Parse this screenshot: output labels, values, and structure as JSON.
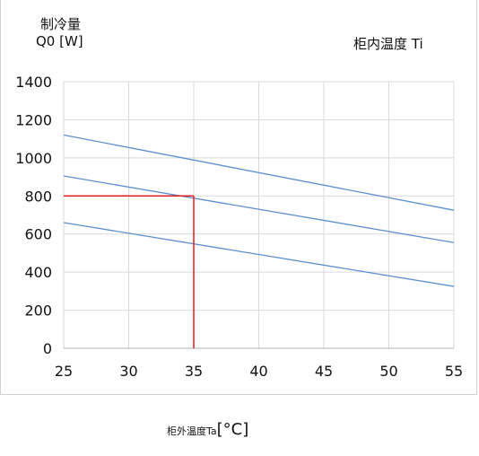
{
  "chart_data": {
    "type": "line",
    "ylabel_line1": "制冷量",
    "ylabel_line2": "Q0 [W]",
    "series_title": "柜内温度  Ti",
    "xlabel_name": "柜外温度Ta",
    "xlabel_unit": "[°C]",
    "xlim": [
      25,
      55
    ],
    "ylim": [
      0,
      1400
    ],
    "xticks": [
      25,
      30,
      35,
      40,
      45,
      50,
      55
    ],
    "yticks": [
      0,
      200,
      400,
      600,
      800,
      1000,
      1200,
      1400
    ],
    "grid": true,
    "series": [
      {
        "x": [
          25,
          55
        ],
        "y": [
          1120,
          725
        ]
      },
      {
        "x": [
          25,
          55
        ],
        "y": [
          905,
          555
        ]
      },
      {
        "x": [
          25,
          55
        ],
        "y": [
          660,
          325
        ]
      }
    ],
    "annotation": {
      "x": 35,
      "y": 800
    },
    "colors": {
      "series": "#5b8fd0",
      "annotation": "#e02020",
      "grid": "#d9d9d9",
      "axis": "#b0b0b0"
    }
  }
}
